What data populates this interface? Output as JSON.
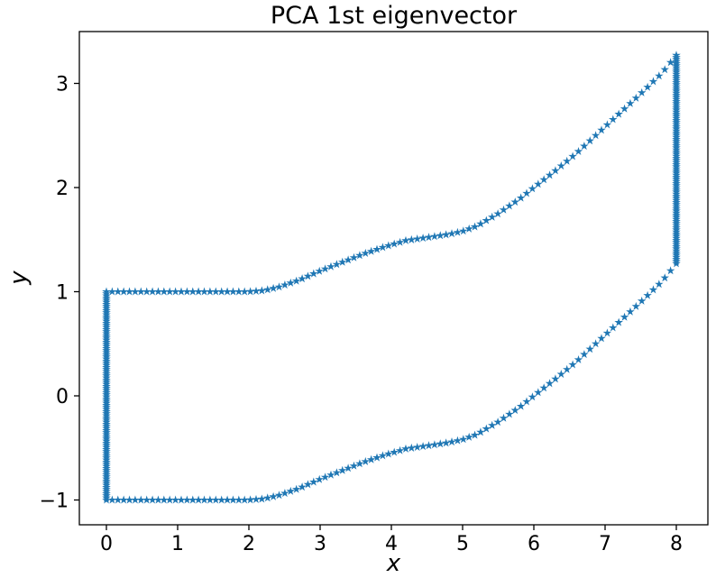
{
  "figure": {
    "background": "#ffffff"
  },
  "chart_data": {
    "type": "scatter",
    "title": "PCA 1st eigenvector",
    "xlabel": "x",
    "ylabel": "y",
    "marker": "star",
    "marker_color": "#1f77b4",
    "marker_size_px": 10,
    "axis_color": "#000000",
    "text_color": "#000000",
    "xlim": [
      -0.38,
      8.44
    ],
    "ylim": [
      -1.24,
      3.5
    ],
    "xticks": [
      0,
      1,
      2,
      3,
      4,
      5,
      6,
      7,
      8
    ],
    "yticks": [
      -1,
      0,
      1,
      2,
      3
    ],
    "grid": false,
    "legend": null,
    "points_per_edge": 100,
    "offset_curve_g": [
      [
        0,
        0
      ],
      [
        2,
        0
      ],
      [
        2.2,
        0.01
      ],
      [
        2.4,
        0.04
      ],
      [
        2.7,
        0.11
      ],
      [
        3,
        0.2
      ],
      [
        3.3,
        0.28
      ],
      [
        3.6,
        0.36
      ],
      [
        3.9,
        0.43
      ],
      [
        4.2,
        0.49
      ],
      [
        4.5,
        0.52
      ],
      [
        4.8,
        0.55
      ],
      [
        5,
        0.58
      ],
      [
        5.2,
        0.63
      ],
      [
        5.5,
        0.75
      ],
      [
        5.8,
        0.89
      ],
      [
        6,
        1.0
      ],
      [
        6.3,
        1.16
      ],
      [
        6.6,
        1.33
      ],
      [
        6.9,
        1.52
      ],
      [
        7.2,
        1.71
      ],
      [
        7.5,
        1.9
      ],
      [
        7.8,
        2.1
      ],
      [
        8,
        2.27
      ]
    ],
    "edges": [
      {
        "name": "left",
        "type": "vertical",
        "x": 0,
        "y_start": -1,
        "y_end": 1
      },
      {
        "name": "right",
        "type": "vertical",
        "x": 8,
        "y_start": 1.27,
        "y_end": 3.27
      },
      {
        "name": "top",
        "type": "offset_curve",
        "x_start": 0,
        "x_end": 8,
        "base_y": 1
      },
      {
        "name": "bottom",
        "type": "offset_curve",
        "x_start": 0,
        "x_end": 8,
        "base_y": -1
      }
    ]
  }
}
